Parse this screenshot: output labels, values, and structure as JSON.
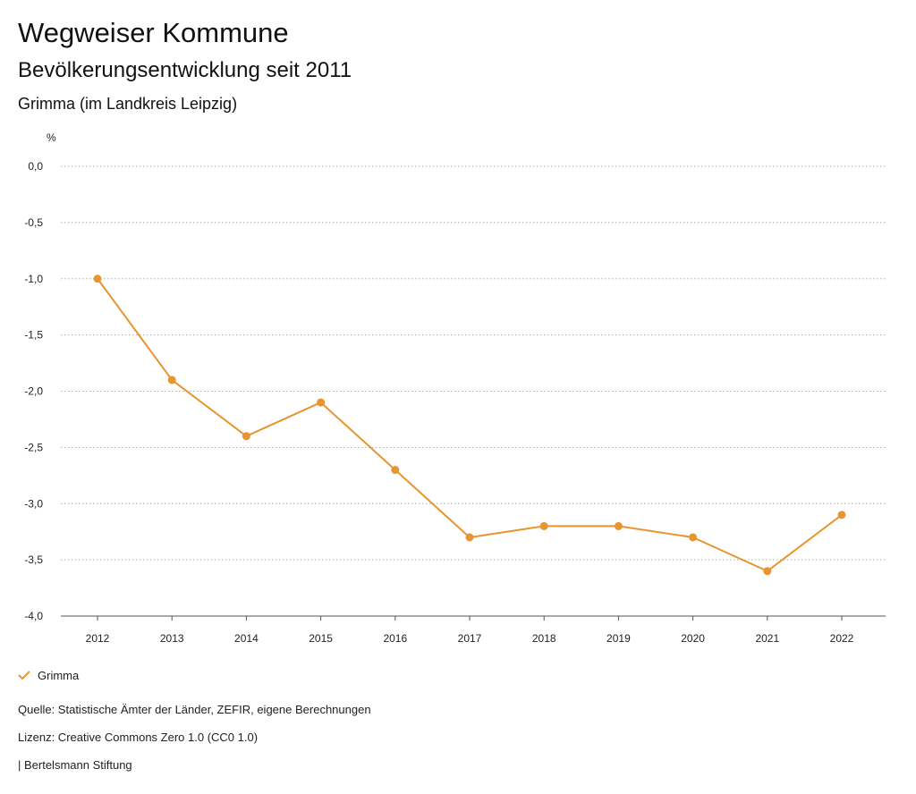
{
  "header": {
    "title": "Wegweiser Kommune",
    "subtitle": "Bevölkerungsentwicklung seit 2011",
    "region": "Grimma (im Landkreis Leipzig)"
  },
  "chart_data": {
    "type": "line",
    "ylabel": "%",
    "x": [
      "2012",
      "2013",
      "2014",
      "2015",
      "2016",
      "2017",
      "2018",
      "2019",
      "2020",
      "2021",
      "2022"
    ],
    "series": [
      {
        "name": "Grimma",
        "color": "#e8952f",
        "values": [
          -1.0,
          -1.9,
          -2.4,
          -2.1,
          -2.7,
          -3.3,
          -3.2,
          -3.2,
          -3.3,
          -3.6,
          -3.1
        ]
      }
    ],
    "ylim": [
      -4.0,
      0.0
    ],
    "yticks": [
      "0,0",
      "-0,5",
      "-1,0",
      "-1,5",
      "-2,0",
      "-2,5",
      "-3,0",
      "-3,5",
      "-4,0"
    ],
    "ytick_values": [
      0.0,
      -0.5,
      -1.0,
      -1.5,
      -2.0,
      -2.5,
      -3.0,
      -3.5,
      -4.0
    ],
    "grid": true,
    "legend": "bottom-left"
  },
  "footer": {
    "source": "Quelle: Statistische Ämter der Länder, ZEFIR, eigene Berechnungen",
    "license": "Lizenz: Creative Commons Zero 1.0 (CC0 1.0)",
    "publisher": "| Bertelsmann Stiftung"
  }
}
